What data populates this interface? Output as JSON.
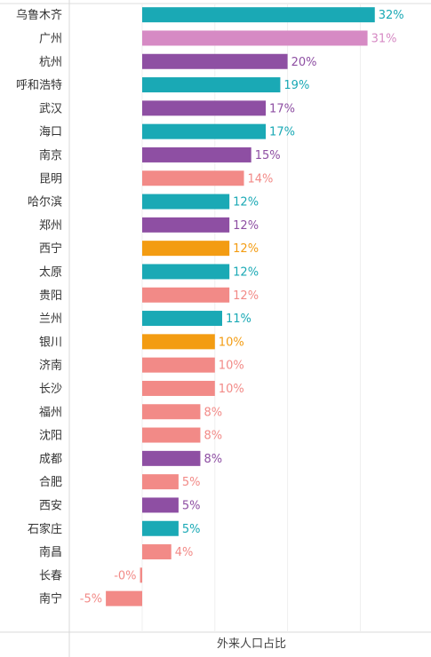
{
  "chart_data": {
    "type": "bar",
    "orientation": "horizontal",
    "xlabel": "外来人口占比",
    "grid": true,
    "xlim": [
      -0.09,
      0.39
    ],
    "categories": [
      "乌鲁木齐",
      "广州",
      "杭州",
      "呼和浩特",
      "武汉",
      "海口",
      "南京",
      "昆明",
      "哈尔滨",
      "郑州",
      "西宁",
      "太原",
      "贵阳",
      "兰州",
      "银川",
      "济南",
      "长沙",
      "福州",
      "沈阳",
      "成都",
      "合肥",
      "西安",
      "石家庄",
      "南昌",
      "长春",
      "南宁"
    ],
    "values": [
      0.32,
      0.31,
      0.2,
      0.19,
      0.17,
      0.17,
      0.15,
      0.14,
      0.12,
      0.12,
      0.12,
      0.12,
      0.12,
      0.11,
      0.1,
      0.1,
      0.1,
      0.08,
      0.08,
      0.08,
      0.05,
      0.05,
      0.05,
      0.04,
      -0.003,
      -0.05
    ],
    "labels": [
      "32%",
      "31%",
      "20%",
      "19%",
      "17%",
      "17%",
      "15%",
      "14%",
      "12%",
      "12%",
      "12%",
      "12%",
      "12%",
      "11%",
      "10%",
      "10%",
      "10%",
      "8%",
      "8%",
      "8%",
      "5%",
      "5%",
      "5%",
      "4%",
      "-0%",
      "-5%"
    ],
    "colors": [
      "#1aa9b5",
      "#d68ac4",
      "#8e4fa3",
      "#1aa9b5",
      "#8e4fa3",
      "#1aa9b5",
      "#8e4fa3",
      "#f28a87",
      "#1aa9b5",
      "#8e4fa3",
      "#f39c12",
      "#1aa9b5",
      "#f28a87",
      "#1aa9b5",
      "#f39c12",
      "#f28a87",
      "#f28a87",
      "#f28a87",
      "#f28a87",
      "#8e4fa3",
      "#f28a87",
      "#8e4fa3",
      "#1aa9b5",
      "#f28a87",
      "#f28a87",
      "#f28a87"
    ]
  }
}
